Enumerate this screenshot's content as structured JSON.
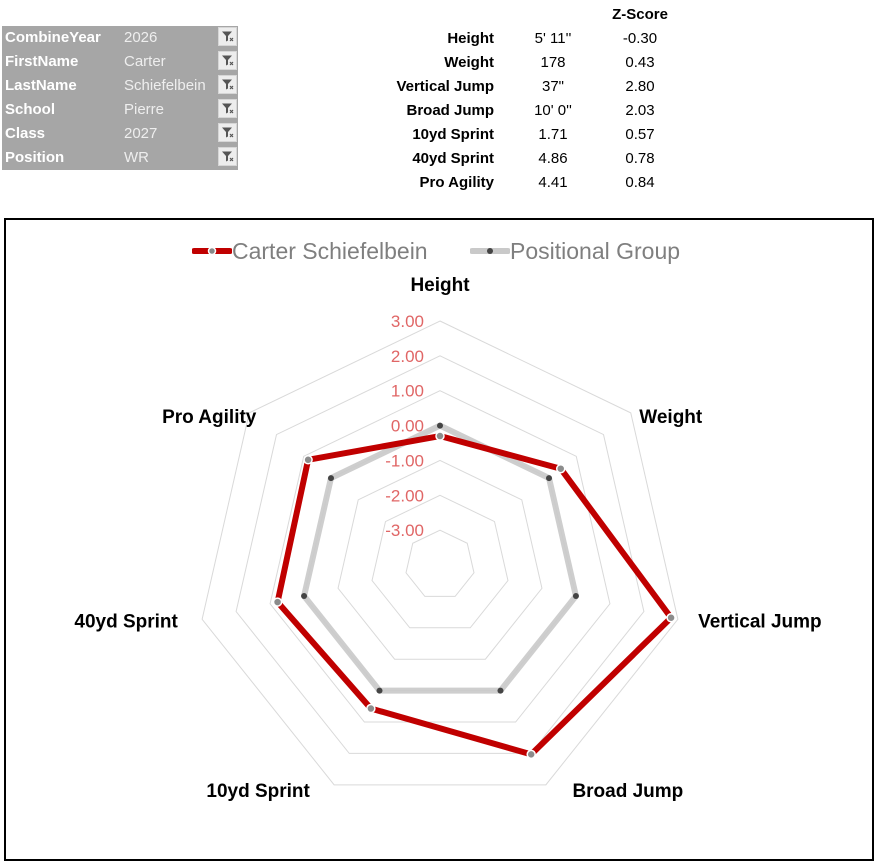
{
  "filters": [
    {
      "key": "CombineYear",
      "value": "2026"
    },
    {
      "key": "FirstName",
      "value": "Carter"
    },
    {
      "key": "LastName",
      "value": "Schiefelbein"
    },
    {
      "key": "School",
      "value": "Pierre"
    },
    {
      "key": "Class",
      "value": "2027"
    },
    {
      "key": "Position",
      "value": "WR"
    }
  ],
  "stats": {
    "zscore_header": "Z-Score",
    "rows": [
      {
        "name": "Height",
        "value": "5' 11''",
        "z": "-0.30"
      },
      {
        "name": "Weight",
        "value": "178",
        "z": "0.43"
      },
      {
        "name": "Vertical Jump",
        "value": "37\"",
        "z": "2.80"
      },
      {
        "name": "Broad Jump",
        "value": "10' 0''",
        "z": "2.03"
      },
      {
        "name": "10yd Sprint",
        "value": "1.71",
        "z": "0.57"
      },
      {
        "name": "40yd Sprint",
        "value": "4.86",
        "z": "0.78"
      },
      {
        "name": "Pro Agility",
        "value": "4.41",
        "z": "0.84"
      }
    ]
  },
  "colors": {
    "player": "#c00000",
    "group": "#c9c9c9",
    "tick_labels": "#e06666",
    "grid": "#d9d9d9",
    "filter_bg": "#a6a6a6"
  },
  "icons": {
    "filter_button": "filter-funnel-icon"
  },
  "chart_data": {
    "type": "radar",
    "axes": [
      "Height",
      "Weight",
      "Vertical Jump",
      "Broad Jump",
      "10yd Sprint",
      "40yd Sprint",
      "Pro Agility"
    ],
    "rlim": [
      -4,
      3
    ],
    "ticks": [
      "3.00",
      "2.00",
      "1.00",
      "0.00",
      "-1.00",
      "-2.00",
      "-3.00"
    ],
    "tick_values": [
      3,
      2,
      1,
      0,
      -1,
      -2,
      -3
    ],
    "grid": true,
    "legend_position": "top",
    "series": [
      {
        "name": "Carter Schiefelbein",
        "values": [
          -0.3,
          0.43,
          2.8,
          2.03,
          0.57,
          0.78,
          0.84
        ]
      },
      {
        "name": "Positional Group",
        "values": [
          0.0,
          0.0,
          0.0,
          0.0,
          0.0,
          0.0,
          0.0
        ]
      }
    ]
  }
}
